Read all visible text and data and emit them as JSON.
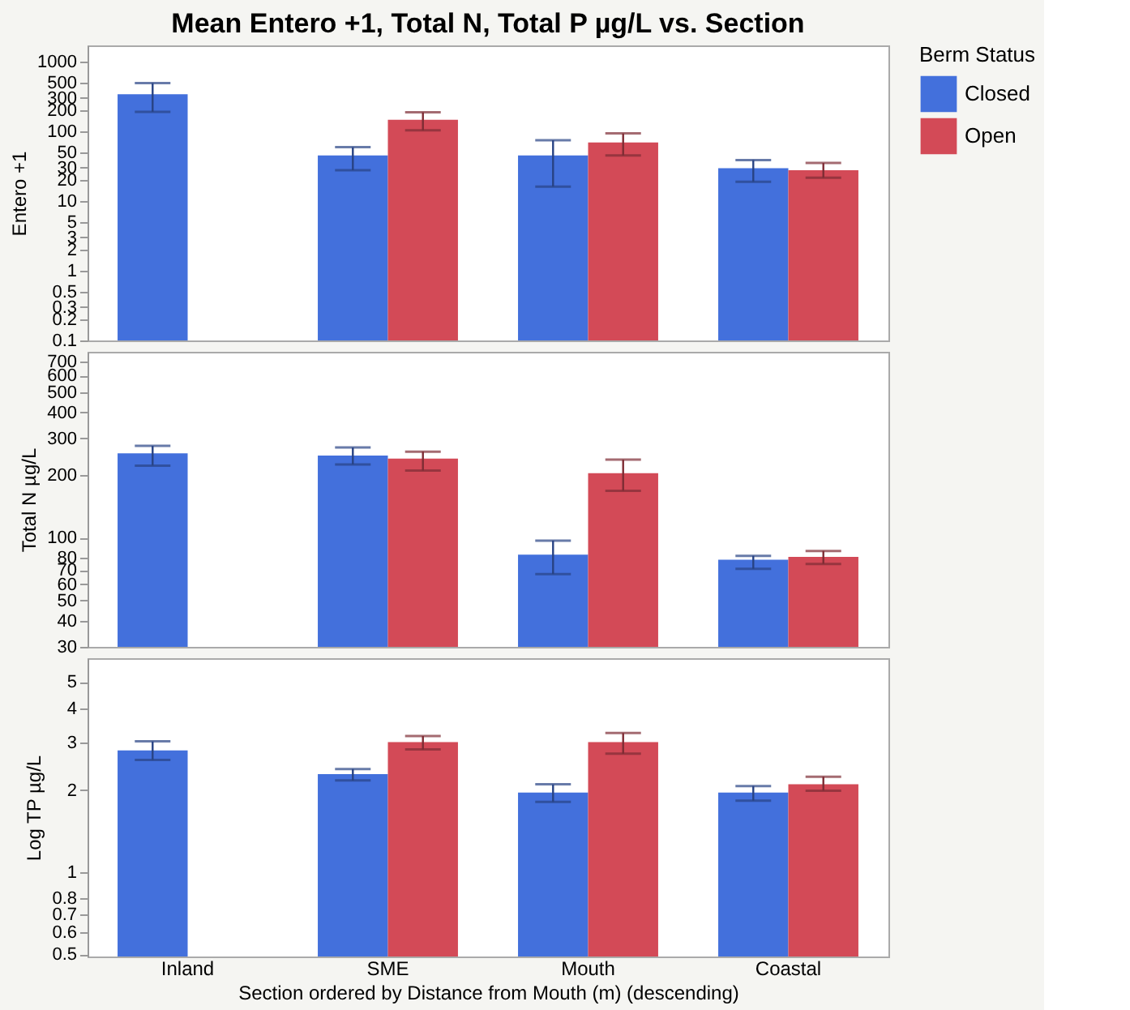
{
  "chart_data": [
    {
      "type": "bar",
      "title": "Mean Entero +1, Total N, Total P µg/L vs. Section",
      "ylabel": "Entero +1",
      "categories": [
        "Inland",
        "SME",
        "Mouth",
        "Coastal"
      ],
      "log": true,
      "ylim": [
        0.1,
        1700
      ],
      "yticks": [
        1000,
        500,
        300,
        200,
        100,
        50,
        30,
        20,
        10,
        5,
        3,
        2,
        1,
        0.5,
        0.3,
        0.2,
        0.1
      ],
      "tick_labels": "y",
      "legend": "top right",
      "legend_title": "Berm Status",
      "series": [
        {
          "name": "Closed",
          "color": "#4370dc",
          "values": [
            340,
            45,
            45,
            29.5
          ],
          "errors": [
            [
              190,
              490
            ],
            [
              27.6,
              59
            ],
            [
              16,
              74
            ],
            [
              18.8,
              38.6
            ]
          ]
        },
        {
          "name": "Open",
          "color": "#d34a57",
          "values": [
            null,
            146,
            69,
            27.6
          ],
          "errors": [
            null,
            [
              103,
              187
            ],
            [
              45,
              93
            ],
            [
              21.5,
              35
            ]
          ]
        }
      ]
    },
    {
      "type": "bar",
      "ylabel": "Total N µg/L",
      "categories": [
        "Inland",
        "SME",
        "Mouth",
        "Coastal"
      ],
      "log": true,
      "ylim": [
        30,
        780
      ],
      "yticks": [
        700,
        600,
        500,
        400,
        300,
        200,
        100,
        80,
        70,
        60,
        50,
        40,
        30
      ],
      "tick_labels": "y",
      "series": [
        {
          "name": "Closed",
          "color": "#4370dc",
          "values": [
            254,
            248,
            83,
            78.5
          ],
          "errors": [
            [
              222,
              276
            ],
            [
              225,
              271
            ],
            [
              67,
              97
            ],
            [
              71,
              82
            ]
          ]
        },
        {
          "name": "Open",
          "color": "#d34a57",
          "values": [
            null,
            240,
            204,
            81
          ],
          "errors": [
            null,
            [
              210,
              259
            ],
            [
              168,
              237
            ],
            [
              75,
              86.5
            ]
          ]
        }
      ]
    },
    {
      "type": "bar",
      "ylabel": "Log TP µg/L",
      "xlabel": "Section ordered by Distance from Mouth (m) (descending)",
      "categories": [
        "Inland",
        "SME",
        "Mouth",
        "Coastal"
      ],
      "log": true,
      "ylim": [
        0.49,
        6.1
      ],
      "yticks": [
        5,
        4,
        3,
        2,
        1,
        0.8,
        0.7,
        0.6,
        0.5
      ],
      "series": [
        {
          "name": "Closed",
          "color": "#4370dc",
          "values": [
            2.8,
            2.29,
            1.96,
            1.96
          ],
          "errors": [
            [
              2.58,
              3.02
            ],
            [
              2.17,
              2.39
            ],
            [
              1.81,
              2.1
            ],
            [
              1.83,
              2.07
            ]
          ]
        },
        {
          "name": "Open",
          "color": "#d34a57",
          "values": [
            null,
            3.0,
            3.0,
            2.1
          ],
          "errors": [
            null,
            [
              2.82,
              3.16
            ],
            [
              2.72,
              3.24
            ],
            [
              1.99,
              2.24
            ]
          ]
        }
      ]
    }
  ]
}
